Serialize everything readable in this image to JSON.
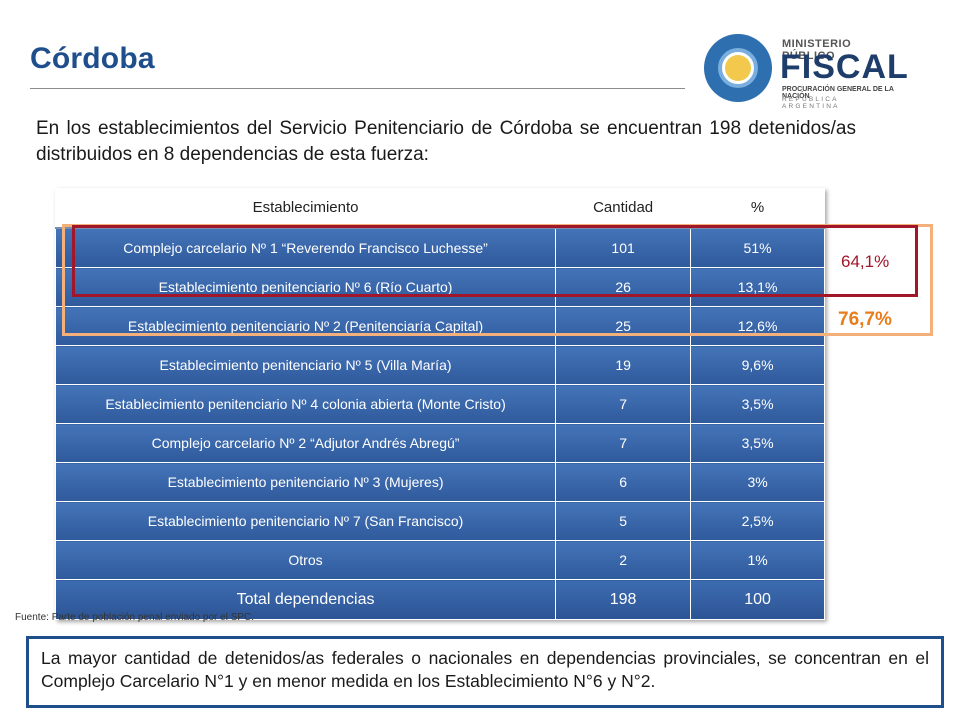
{
  "header": {
    "title": "Córdoba"
  },
  "logo": {
    "line1": "MINISTERIO PÚBLICO",
    "line2": "FISCAL",
    "line3": "PROCURACIÓN GENERAL DE LA NACIÓN",
    "line4": "REPÚBLICA ARGENTINA"
  },
  "intro": "En los establecimientos del Servicio Penitenciario de Córdoba se encuentran 198 detenidos/as distribuidos en 8 dependencias de esta fuerza:",
  "table": {
    "headers": [
      "Establecimiento",
      "Cantidad",
      "%"
    ],
    "rows": [
      [
        "Complejo carcelario Nº 1 “Reverendo Francisco Luchesse”",
        "101",
        "51%"
      ],
      [
        "Establecimiento penitenciario Nº 6  (Río Cuarto)",
        "26",
        "13,1%"
      ],
      [
        "Establecimiento penitenciario Nº 2 (Penitenciaría Capital)",
        "25",
        "12,6%"
      ],
      [
        "Establecimiento penitenciario Nº 5 (Villa María)",
        "19",
        "9,6%"
      ],
      [
        "Establecimiento penitenciario Nº 4 colonia abierta (Monte Cristo)",
        "7",
        "3,5%"
      ],
      [
        "Complejo carcelario Nº 2 “Adjutor Andrés Abregú”",
        "7",
        "3,5%"
      ],
      [
        "Establecimiento penitenciario Nº 3 (Mujeres)",
        "6",
        "3%"
      ],
      [
        "Establecimiento penitenciario Nº 7  (San Francisco)",
        "5",
        "2,5%"
      ],
      [
        "Otros",
        "2",
        "1%"
      ]
    ],
    "total": [
      "Total dependencias",
      "198",
      "100"
    ]
  },
  "highlights": {
    "red_pct": "64,1%",
    "red_color": "#a2162a",
    "orange_pct": "76,7%",
    "orange_color": "#e87d1a"
  },
  "source": "Fuente: Parte de población penal enviado por el SPC.",
  "note": "La mayor cantidad de detenidos/as federales o nacionales en dependencias provinciales, se concentran en el Complejo Carcelario N°1 y en menor medida en los Establecimiento N°6 y N°2."
}
